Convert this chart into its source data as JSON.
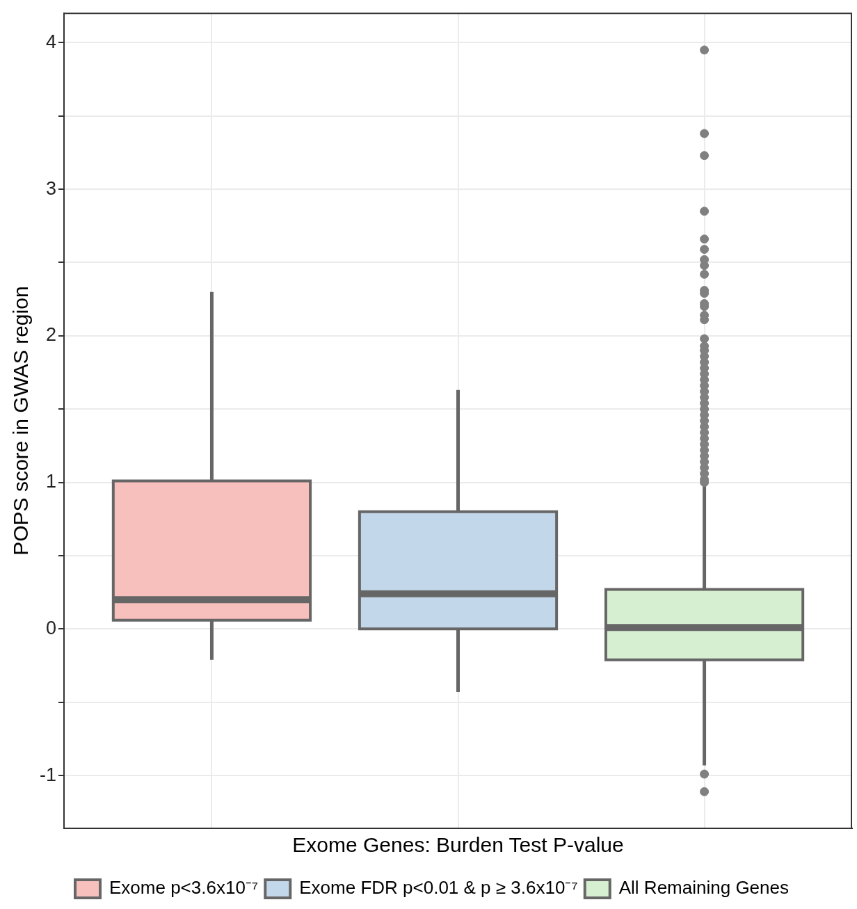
{
  "chart_data": {
    "type": "box",
    "xlabel": "Exome Genes: Burden Test P-value",
    "ylabel": "POPS score in GWAS region",
    "categories": [
      null,
      null,
      null
    ],
    "ylim": [
      -1.36,
      4.2
    ],
    "yticks": [
      -1,
      {
        "value": -0.5,
        "label": null
      },
      0,
      {
        "value": 0.5,
        "label": null
      },
      1,
      {
        "value": 1.5,
        "label": null
      },
      2,
      {
        "value": 2.5,
        "label": null
      },
      3,
      {
        "value": 3.5,
        "label": null
      },
      4
    ],
    "grid": true,
    "legend": "bottom",
    "series": [
      {
        "name": "Exome p<3.6x10⁻⁷",
        "color": "#f8c0bc",
        "boxes": [
          {
            "low": -0.21,
            "q1": 0.06,
            "median": 0.2,
            "q3": 1.01,
            "high": 2.3
          },
          null,
          null
        ]
      },
      {
        "name": "Exome FDR p<0.01 & p ≥ 3.6x10⁻⁷",
        "color": "#c3d7ea",
        "boxes": [
          null,
          {
            "low": -0.43,
            "q1": 0,
            "median": 0.24,
            "q3": 0.8,
            "high": 1.63
          },
          null
        ]
      },
      {
        "name": "All Remaining Genes",
        "color": "#d7efd1",
        "boxes": [
          null,
          null,
          {
            "low": -0.93,
            "q1": -0.21,
            "median": 0.01,
            "q3": 0.27,
            "high": 0.98,
            "outliers": [
              3.95,
              3.38,
              3.23,
              2.85,
              2.66,
              2.59,
              2.52,
              2.48,
              2.42,
              2.31,
              2.29,
              2.22,
              2.2,
              2.14,
              2.11,
              1.98,
              1.93,
              1.9,
              1.86,
              1.82,
              1.78,
              1.74,
              1.7,
              1.66,
              1.62,
              1.58,
              1.54,
              1.5,
              1.46,
              1.42,
              1.38,
              1.34,
              1.3,
              1.26,
              1.22,
              1.18,
              1.14,
              1.1,
              1.06,
              1.02,
              1.0,
              -0.99,
              -1.11
            ]
          }
        ]
      }
    ]
  }
}
